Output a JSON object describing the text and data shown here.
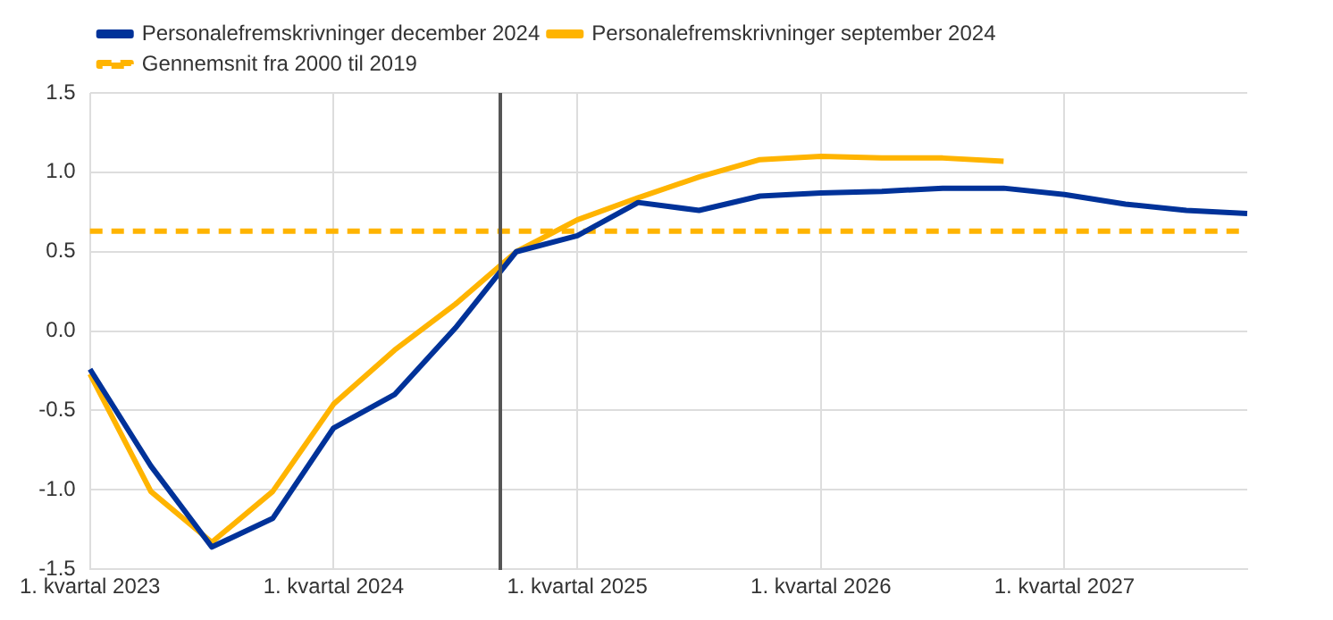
{
  "chart_data": {
    "type": "line",
    "categories": [
      "1. kvartal 2023",
      null,
      null,
      null,
      "1. kvartal 2024",
      null,
      null,
      null,
      "1. kvartal 2025",
      null,
      null,
      null,
      "1. kvartal 2026",
      null,
      null,
      null,
      "1. kvartal 2027",
      null,
      null,
      null
    ],
    "series": [
      {
        "name": "Personalefremskrivninger december 2024",
        "color": "#003299",
        "values": [
          -0.24,
          -0.85,
          -1.36,
          -1.18,
          -0.61,
          -0.4,
          0.02,
          0.5,
          0.6,
          0.81,
          0.76,
          0.85,
          0.87,
          0.88,
          0.9,
          0.9,
          0.86,
          0.8,
          0.76,
          0.74
        ]
      },
      {
        "name": "Personalefremskrivninger september 2024",
        "color": "#ffb400",
        "values": [
          -0.27,
          -1.01,
          -1.33,
          -1.01,
          -0.46,
          -0.12,
          0.17,
          0.5,
          0.7,
          0.84,
          0.97,
          1.08,
          1.1,
          1.09,
          1.09,
          1.07,
          null,
          null,
          null,
          null
        ]
      },
      {
        "name": "Gennemsnit fra 2000 til 2019",
        "color": "#ffb400",
        "line_style": "dashed",
        "values": [
          0.63,
          0.63,
          0.63,
          0.63,
          0.63,
          0.63,
          0.63,
          0.63,
          0.63,
          0.63,
          0.63,
          0.63,
          0.63,
          0.63,
          0.63,
          0.63,
          0.63,
          0.63,
          0.63,
          0.63
        ]
      }
    ],
    "ylim": [
      -1.5,
      1.5
    ],
    "yticks": [
      {
        "value": -1.5,
        "label": "-1.5"
      },
      {
        "value": -1,
        "label": "-1.0"
      },
      {
        "value": -0.5,
        "label": "-0.5"
      },
      {
        "value": 0,
        "label": "0.0"
      },
      {
        "value": 0.5,
        "label": "0.5"
      },
      {
        "value": 1,
        "label": "1.0"
      },
      {
        "value": 1.5,
        "label": "1.5"
      }
    ],
    "grid": true,
    "legend": "top left",
    "marker": "none",
    "line_style": "solid"
  }
}
